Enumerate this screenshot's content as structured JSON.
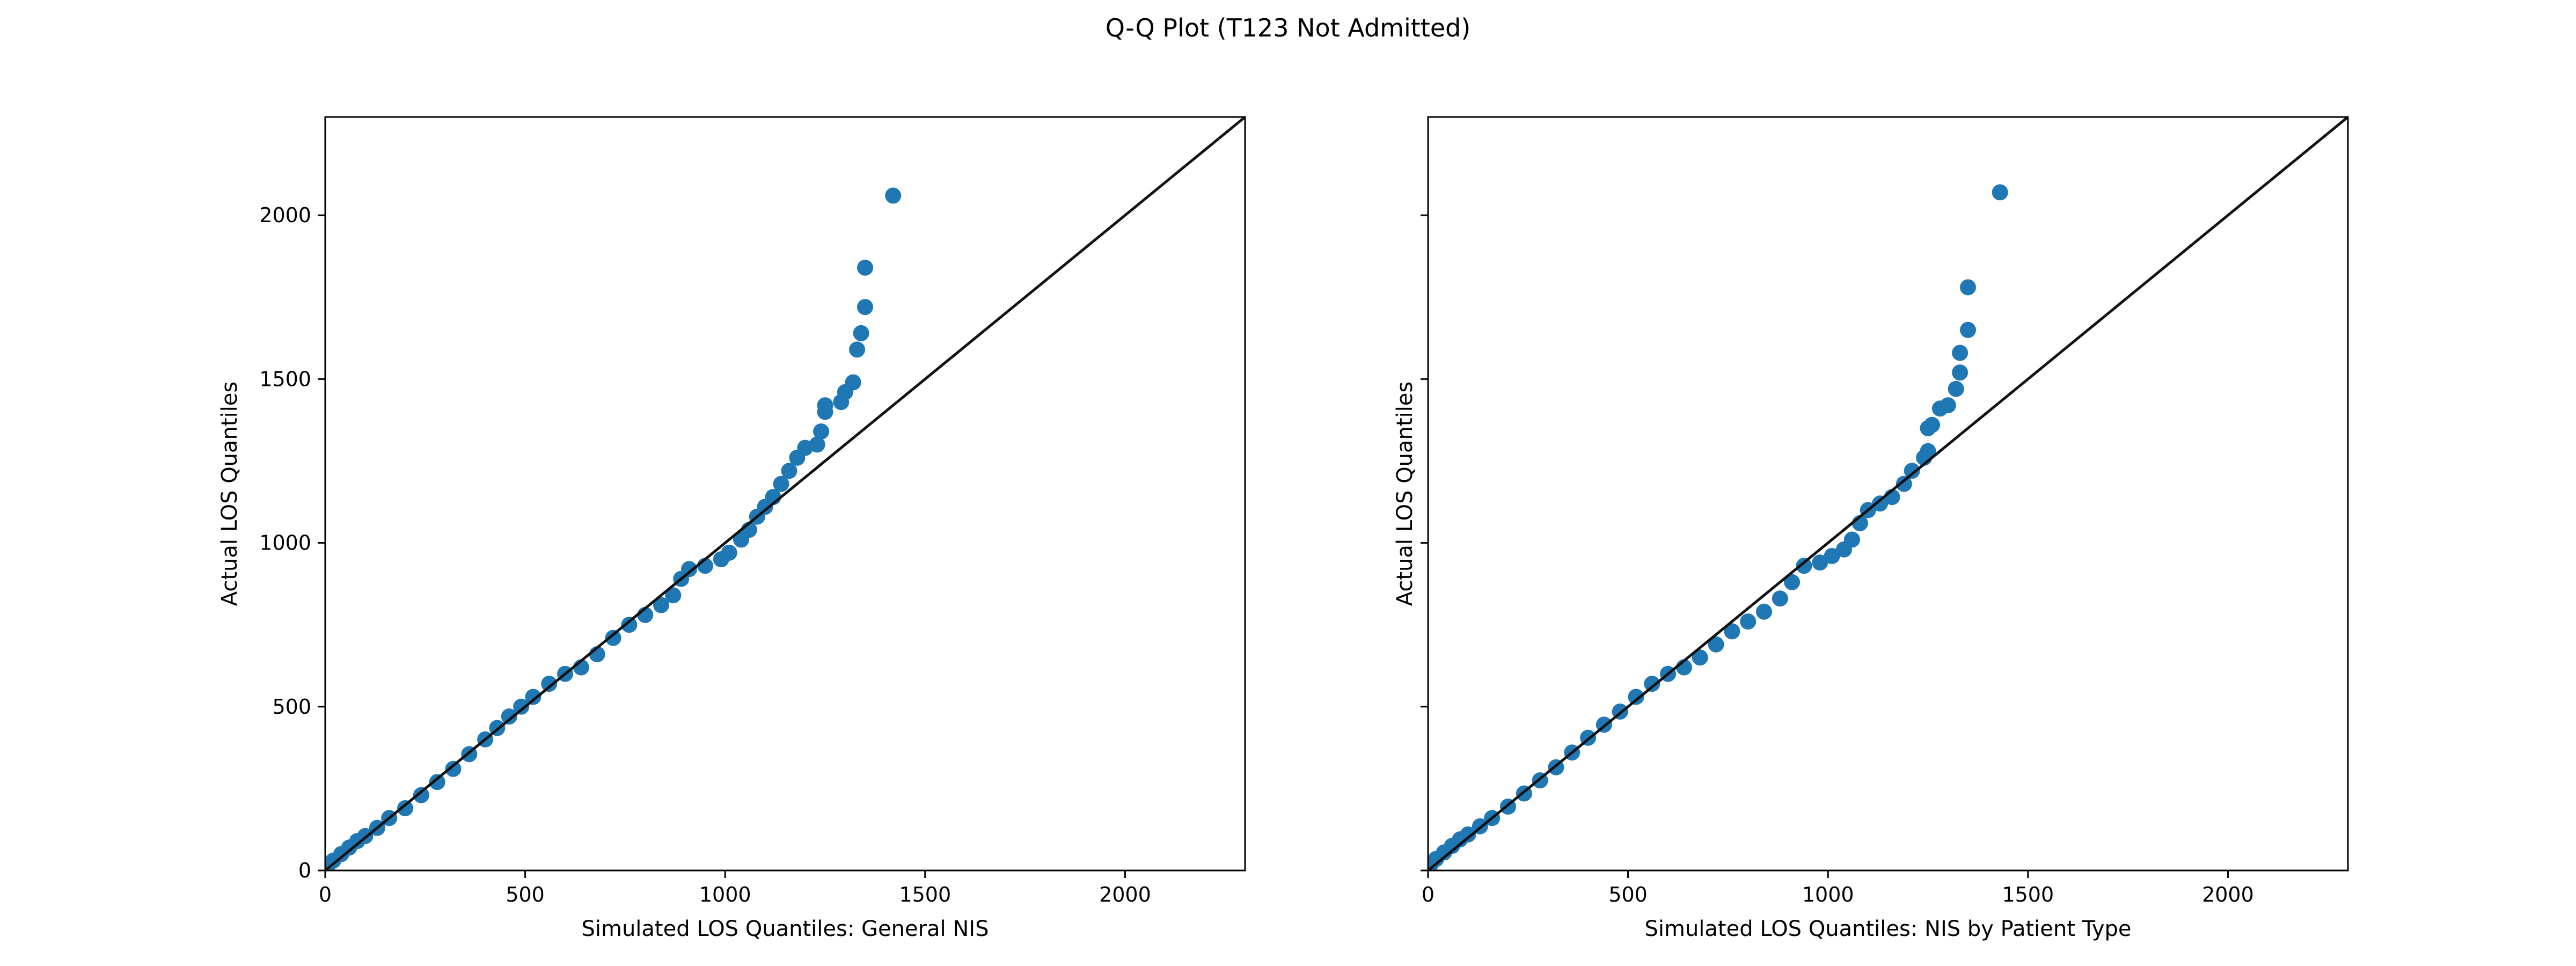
{
  "title": "Q-Q Plot (T123 Not Admitted)",
  "colors": {
    "points": "#1f77b4",
    "reference_line": "#111111",
    "axes": "#000000"
  },
  "chart_data": [
    {
      "type": "scatter",
      "title": "",
      "xlabel": "Simulated LOS Quantiles: General NIS",
      "ylabel": "Actual LOS Quantiles",
      "xlim": [
        0,
        2300
      ],
      "ylim": [
        0,
        2300
      ],
      "xticks": [
        0,
        500,
        1000,
        1500,
        2000
      ],
      "yticks": [
        0,
        500,
        1000,
        1500,
        2000
      ],
      "show_ytick_labels": true,
      "grid": false,
      "reference_line": [
        [
          0,
          0
        ],
        [
          2300,
          2300
        ]
      ],
      "points": [
        [
          5,
          10
        ],
        [
          20,
          30
        ],
        [
          40,
          50
        ],
        [
          60,
          70
        ],
        [
          80,
          90
        ],
        [
          100,
          105
        ],
        [
          130,
          130
        ],
        [
          160,
          160
        ],
        [
          200,
          190
        ],
        [
          240,
          230
        ],
        [
          280,
          270
        ],
        [
          320,
          310
        ],
        [
          360,
          355
        ],
        [
          400,
          400
        ],
        [
          430,
          435
        ],
        [
          460,
          470
        ],
        [
          490,
          500
        ],
        [
          520,
          530
        ],
        [
          560,
          570
        ],
        [
          600,
          600
        ],
        [
          640,
          620
        ],
        [
          680,
          660
        ],
        [
          720,
          710
        ],
        [
          760,
          750
        ],
        [
          800,
          780
        ],
        [
          840,
          810
        ],
        [
          870,
          840
        ],
        [
          890,
          890
        ],
        [
          910,
          920
        ],
        [
          950,
          930
        ],
        [
          990,
          950
        ],
        [
          1010,
          970
        ],
        [
          1040,
          1010
        ],
        [
          1060,
          1040
        ],
        [
          1080,
          1080
        ],
        [
          1100,
          1110
        ],
        [
          1120,
          1140
        ],
        [
          1140,
          1180
        ],
        [
          1160,
          1220
        ],
        [
          1180,
          1260
        ],
        [
          1200,
          1290
        ],
        [
          1230,
          1300
        ],
        [
          1240,
          1340
        ],
        [
          1250,
          1400
        ],
        [
          1250,
          1420
        ],
        [
          1290,
          1430
        ],
        [
          1300,
          1460
        ],
        [
          1320,
          1490
        ],
        [
          1330,
          1590
        ],
        [
          1340,
          1640
        ],
        [
          1350,
          1720
        ],
        [
          1350,
          1840
        ],
        [
          1420,
          2060
        ]
      ]
    },
    {
      "type": "scatter",
      "title": "",
      "xlabel": "Simulated LOS Quantiles: NIS by Patient Type",
      "ylabel": "Actual LOS Quantiles",
      "xlim": [
        0,
        2300
      ],
      "ylim": [
        0,
        2300
      ],
      "xticks": [
        0,
        500,
        1000,
        1500,
        2000
      ],
      "yticks": [
        0,
        500,
        1000,
        1500,
        2000
      ],
      "show_ytick_labels": false,
      "grid": false,
      "reference_line": [
        [
          0,
          0
        ],
        [
          2300,
          2300
        ]
      ],
      "points": [
        [
          5,
          15
        ],
        [
          20,
          35
        ],
        [
          40,
          55
        ],
        [
          60,
          75
        ],
        [
          80,
          95
        ],
        [
          100,
          110
        ],
        [
          130,
          135
        ],
        [
          160,
          160
        ],
        [
          200,
          195
        ],
        [
          240,
          235
        ],
        [
          280,
          275
        ],
        [
          320,
          315
        ],
        [
          360,
          360
        ],
        [
          400,
          405
        ],
        [
          440,
          445
        ],
        [
          480,
          485
        ],
        [
          520,
          530
        ],
        [
          560,
          570
        ],
        [
          600,
          600
        ],
        [
          640,
          620
        ],
        [
          680,
          650
        ],
        [
          720,
          690
        ],
        [
          760,
          730
        ],
        [
          800,
          760
        ],
        [
          840,
          790
        ],
        [
          880,
          830
        ],
        [
          910,
          880
        ],
        [
          940,
          930
        ],
        [
          980,
          940
        ],
        [
          1010,
          960
        ],
        [
          1040,
          980
        ],
        [
          1060,
          1010
        ],
        [
          1080,
          1060
        ],
        [
          1100,
          1100
        ],
        [
          1130,
          1120
        ],
        [
          1160,
          1140
        ],
        [
          1190,
          1180
        ],
        [
          1210,
          1220
        ],
        [
          1240,
          1260
        ],
        [
          1250,
          1280
        ],
        [
          1250,
          1350
        ],
        [
          1260,
          1360
        ],
        [
          1280,
          1410
        ],
        [
          1300,
          1420
        ],
        [
          1320,
          1470
        ],
        [
          1330,
          1520
        ],
        [
          1330,
          1580
        ],
        [
          1350,
          1650
        ],
        [
          1350,
          1780
        ],
        [
          1430,
          2070
        ]
      ]
    }
  ]
}
